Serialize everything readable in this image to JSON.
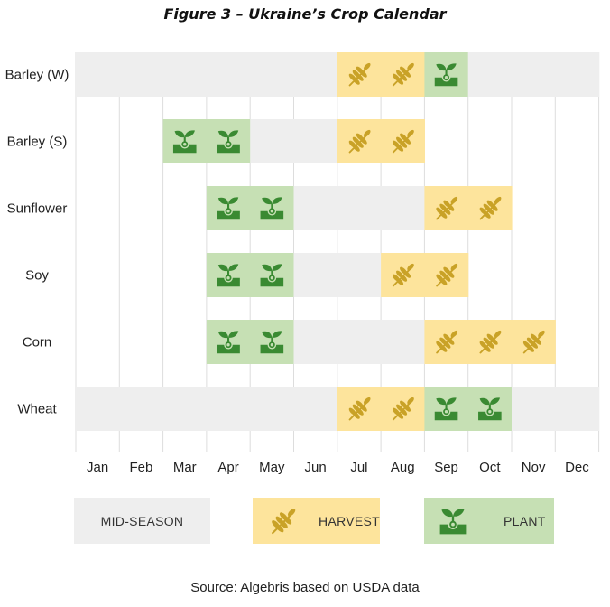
{
  "title": "Figure 3 – Ukraine’s Crop Calendar",
  "source": "Source: Algebris based on USDA data",
  "colors": {
    "mid_season": "#eeeeee",
    "harvest": "#fde49c",
    "plant": "#c6e0b4",
    "harvest_icon": "#c9a227",
    "plant_icon": "#3a8a32",
    "grid": "#dddddd"
  },
  "icons": {
    "harvest": "wheat-icon",
    "plant": "sprout-icon"
  },
  "legend": {
    "mid_season": "MID-SEASON",
    "harvest": "HARVEST",
    "plant": "PLANT"
  },
  "chart_data": {
    "type": "table",
    "title": "Figure 3 – Ukraine’s Crop Calendar",
    "months": [
      "Jan",
      "Feb",
      "Mar",
      "Apr",
      "May",
      "Jun",
      "Jul",
      "Aug",
      "Sep",
      "Oct",
      "Nov",
      "Dec"
    ],
    "crops": [
      {
        "name": "Barley (W)",
        "mid_season": [
          "Jan",
          "Feb",
          "Mar",
          "Apr",
          "May",
          "Jun",
          "Oct",
          "Nov",
          "Dec"
        ],
        "harvest": [
          "Jul",
          "Aug"
        ],
        "plant": [
          "Sep"
        ]
      },
      {
        "name": "Barley (S)",
        "mid_season": [
          "May",
          "Jun"
        ],
        "harvest": [
          "Jul",
          "Aug"
        ],
        "plant": [
          "Mar",
          "Apr"
        ]
      },
      {
        "name": "Sunflower",
        "mid_season": [
          "Jun",
          "Jul",
          "Aug"
        ],
        "harvest": [
          "Sep",
          "Oct"
        ],
        "plant": [
          "Apr",
          "May"
        ]
      },
      {
        "name": "Soy",
        "mid_season": [
          "Jun",
          "Jul"
        ],
        "harvest": [
          "Aug",
          "Sep"
        ],
        "plant": [
          "Apr",
          "May"
        ]
      },
      {
        "name": "Corn",
        "mid_season": [
          "Jun",
          "Jul",
          "Aug"
        ],
        "harvest": [
          "Sep",
          "Oct",
          "Nov"
        ],
        "plant": [
          "Apr",
          "May"
        ]
      },
      {
        "name": "Wheat",
        "mid_season": [
          "Jan",
          "Feb",
          "Mar",
          "Apr",
          "May",
          "Jun",
          "Nov",
          "Dec"
        ],
        "harvest": [
          "Jul",
          "Aug"
        ],
        "plant": [
          "Sep",
          "Oct"
        ]
      }
    ]
  }
}
